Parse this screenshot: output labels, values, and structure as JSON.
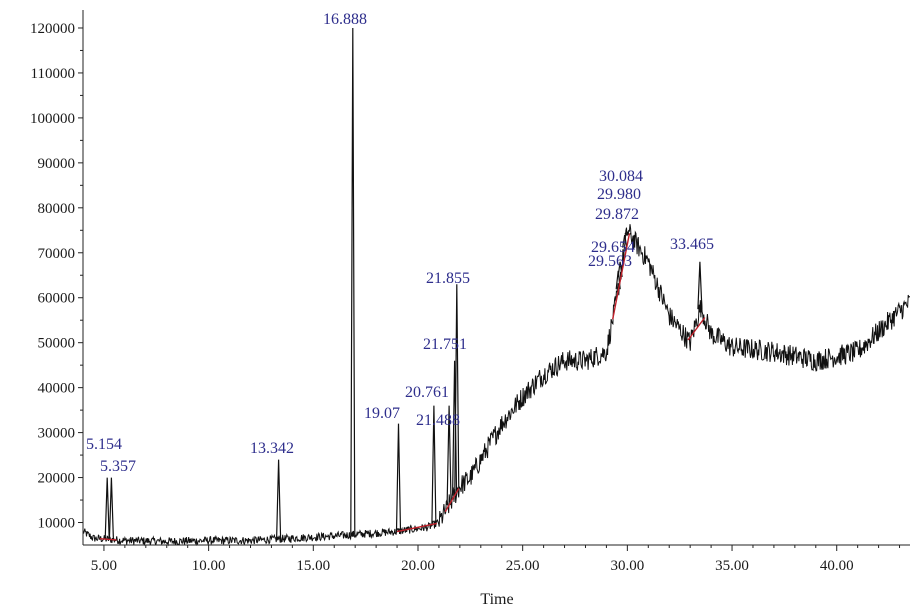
{
  "chart_data": {
    "type": "line",
    "xlabel": "Time",
    "ylabel": "",
    "xlim": [
      4.0,
      43.5
    ],
    "ylim": [
      5000,
      124000
    ],
    "grid": false,
    "x_ticks": [
      {
        "value": 5,
        "label": "5.00"
      },
      {
        "value": 10,
        "label": "10.00"
      },
      {
        "value": 15,
        "label": "15.00"
      },
      {
        "value": 20,
        "label": "20.00"
      },
      {
        "value": 25,
        "label": "25.00"
      },
      {
        "value": 30,
        "label": "30.00"
      },
      {
        "value": 35,
        "label": "35.00"
      },
      {
        "value": 40,
        "label": "40.00"
      }
    ],
    "y_ticks": [
      {
        "value": 10000,
        "label": "10000"
      },
      {
        "value": 20000,
        "label": "20000"
      },
      {
        "value": 30000,
        "label": "30000"
      },
      {
        "value": 40000,
        "label": "40000"
      },
      {
        "value": 50000,
        "label": "50000"
      },
      {
        "value": 60000,
        "label": "60000"
      },
      {
        "value": 70000,
        "label": "70000"
      },
      {
        "value": 80000,
        "label": "80000"
      },
      {
        "value": 90000,
        "label": "90000"
      },
      {
        "value": 100000,
        "label": "100000"
      },
      {
        "value": 110000,
        "label": "110000"
      },
      {
        "value": 120000,
        "label": "120000"
      }
    ],
    "baseline": [
      [
        4.0,
        8000
      ],
      [
        4.5,
        6500
      ],
      [
        6.0,
        6000
      ],
      [
        8.0,
        5800
      ],
      [
        10.0,
        6000
      ],
      [
        12.0,
        6000
      ],
      [
        14.0,
        6500
      ],
      [
        16.0,
        7000
      ],
      [
        17.5,
        7500
      ],
      [
        19.0,
        8000
      ],
      [
        20.5,
        9000
      ],
      [
        21.0,
        10000
      ],
      [
        21.5,
        14000
      ],
      [
        22.0,
        18000
      ],
      [
        22.5,
        20000
      ],
      [
        23.0,
        24000
      ],
      [
        24.0,
        32000
      ],
      [
        25.0,
        38000
      ],
      [
        26.0,
        43000
      ],
      [
        27.0,
        46000
      ],
      [
        28.0,
        46000
      ],
      [
        29.0,
        48000
      ],
      [
        29.5,
        60000
      ],
      [
        30.0,
        75000
      ],
      [
        31.0,
        68000
      ],
      [
        32.0,
        56000
      ],
      [
        33.0,
        50000
      ],
      [
        33.5,
        58000
      ],
      [
        34.0,
        52000
      ],
      [
        35.0,
        49000
      ],
      [
        37.0,
        48000
      ],
      [
        39.0,
        46000
      ],
      [
        41.0,
        48000
      ],
      [
        43.0,
        57000
      ],
      [
        43.5,
        59000
      ]
    ],
    "peaks": [
      {
        "rt": "5.154",
        "time": 5.154,
        "apex": 20000
      },
      {
        "rt": "5.357",
        "time": 5.357,
        "apex": 20000
      },
      {
        "rt": "13.342",
        "time": 13.342,
        "apex": 24000
      },
      {
        "rt": "16.888",
        "time": 16.888,
        "apex": 120000
      },
      {
        "rt": "19.07",
        "time": 19.07,
        "apex": 32000
      },
      {
        "rt": "20.761",
        "time": 20.761,
        "apex": 36000
      },
      {
        "rt": "21.488",
        "time": 21.488,
        "apex": 36000
      },
      {
        "rt": "21.751",
        "time": 21.751,
        "apex": 46000
      },
      {
        "rt": "21.855",
        "time": 21.855,
        "apex": 63000
      },
      {
        "rt": "29.563",
        "time": 29.563,
        "apex": 66000
      },
      {
        "rt": "29.654",
        "time": 29.654,
        "apex": 68000
      },
      {
        "rt": "29.872",
        "time": 29.872,
        "apex": 74000
      },
      {
        "rt": "29.980",
        "time": 29.98,
        "apex": 74000
      },
      {
        "rt": "30.084",
        "time": 30.084,
        "apex": 74000
      },
      {
        "rt": "33.465",
        "time": 33.465,
        "apex": 68000
      }
    ],
    "colors": {
      "trace": "#111111",
      "integration": "#c0202a",
      "label": "#2e2e8c",
      "axis": "#222222"
    }
  }
}
